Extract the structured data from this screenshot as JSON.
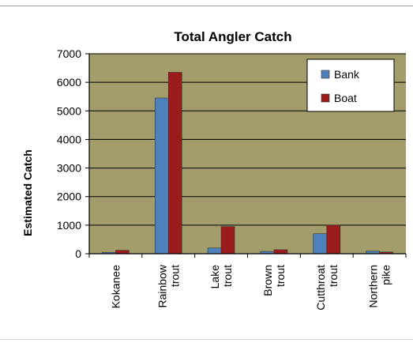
{
  "colors": {
    "plot_area": "#a29d6a",
    "bank": "#4f81bd",
    "boat": "#9c1b1b",
    "grid": "#000000",
    "axis": "#000000"
  },
  "chart_data": {
    "type": "bar",
    "title": "Total Angler Catch",
    "ylabel": "Estimated Catch",
    "xlabel": "",
    "ylim": [
      0,
      7000
    ],
    "yticks": [
      0,
      1000,
      2000,
      3000,
      4000,
      5000,
      6000,
      7000
    ],
    "grid": true,
    "legend_position": "top-right",
    "categories": [
      [
        "Kokanee"
      ],
      [
        "Rainbow",
        "trout"
      ],
      [
        "Lake",
        "trout"
      ],
      [
        "Brown",
        "trout"
      ],
      [
        "Cutthroat",
        "trout"
      ],
      [
        "Northern",
        "pike"
      ]
    ],
    "series": [
      {
        "name": "Bank",
        "color_key": "bank",
        "values": [
          50,
          5450,
          200,
          80,
          700,
          90
        ]
      },
      {
        "name": "Boat",
        "color_key": "boat",
        "values": [
          120,
          6350,
          950,
          140,
          1000,
          60
        ]
      }
    ]
  }
}
